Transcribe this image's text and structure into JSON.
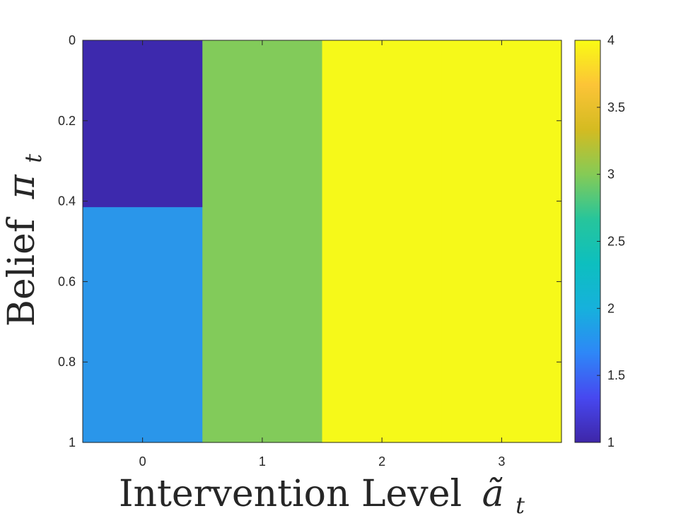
{
  "chart_data": {
    "type": "heatmap",
    "title": "",
    "xlabel": "Intervention Level",
    "xlabel_symbol": "ã",
    "xlabel_subscript": "t",
    "ylabel": "Belief",
    "ylabel_symbol": "π",
    "ylabel_subscript": "t",
    "x": [
      0,
      1,
      2,
      3
    ],
    "x_ticks": [
      "0",
      "1",
      "2",
      "3"
    ],
    "xlim": [
      -0.5,
      3.5
    ],
    "ylim": [
      0,
      1
    ],
    "y_reversed": true,
    "y_ticks": [
      "0",
      "0.2",
      "0.4",
      "0.6",
      "0.8",
      "1"
    ],
    "y_tick_values": [
      0,
      0.2,
      0.4,
      0.6,
      0.8,
      1
    ],
    "cells": [
      {
        "x": 0,
        "y_from": 0,
        "y_to": 0.415,
        "value": 1
      },
      {
        "x": 0,
        "y_from": 0.415,
        "y_to": 1,
        "value": 2
      },
      {
        "x": 1,
        "y_from": 0,
        "y_to": 1,
        "value": 3
      },
      {
        "x": 2,
        "y_from": 0,
        "y_to": 1,
        "value": 4
      },
      {
        "x": 3,
        "y_from": 0,
        "y_to": 1,
        "value": 4
      }
    ],
    "colorbar": {
      "min": 1,
      "max": 4,
      "ticks": [
        "1",
        "1.5",
        "2",
        "2.5",
        "3",
        "3.5",
        "4"
      ],
      "tick_values": [
        1,
        1.5,
        2,
        2.5,
        3,
        3.5,
        4
      ],
      "colormap": "parula",
      "stops": [
        "#3e26a8",
        "#4748f0",
        "#2e87f7",
        "#16b1dc",
        "#0dbfbf",
        "#27c59b",
        "#85cb56",
        "#d4bb21",
        "#fcc437",
        "#f9fb14"
      ]
    },
    "grid": false,
    "legend": "none"
  }
}
